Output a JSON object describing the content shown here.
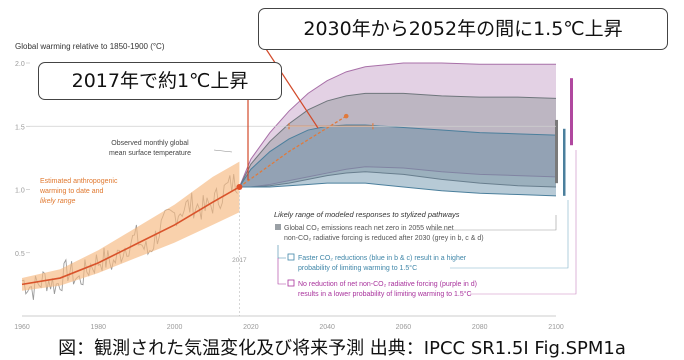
{
  "chart_data": {
    "type": "line",
    "title": "Global warming relative to 1850-1900 (°C)",
    "xlabel": "",
    "ylabel": "",
    "xlim": [
      1960,
      2100
    ],
    "ylim": [
      0,
      2.0
    ],
    "x_ticks": [
      "1960",
      "1980",
      "2000",
      "2020",
      "2040",
      "2060",
      "2080",
      "2100"
    ],
    "y_ticks": [
      "0.5",
      "1.0",
      "1.5",
      "2.0"
    ],
    "grid": false,
    "reference_line_y": 1.5,
    "marker_year_label": "2017",
    "observed_series": {
      "name": "Observed monthly global mean surface temperature",
      "x": [
        1960,
        1963,
        1966,
        1969,
        1972,
        1975,
        1978,
        1981,
        1984,
        1987,
        1990,
        1993,
        1996,
        1999,
        2002,
        2005,
        2008,
        2011,
        2014,
        2017
      ],
      "y": [
        0.28,
        0.22,
        0.3,
        0.24,
        0.36,
        0.28,
        0.4,
        0.45,
        0.42,
        0.55,
        0.62,
        0.5,
        0.68,
        0.78,
        0.85,
        0.88,
        0.84,
        0.92,
        1.02,
        1.08
      ]
    },
    "anthropogenic_series": {
      "name": "Estimated anthropogenic warming to date and likely range",
      "x": [
        1960,
        1970,
        1980,
        1990,
        2000,
        2010,
        2017
      ],
      "y": [
        0.25,
        0.3,
        0.42,
        0.57,
        0.72,
        0.9,
        1.02
      ],
      "lower": [
        0.2,
        0.24,
        0.34,
        0.46,
        0.58,
        0.72,
        0.82
      ],
      "upper": [
        0.3,
        0.37,
        0.52,
        0.7,
        0.88,
        1.1,
        1.22
      ]
    },
    "projection_line": {
      "x": [
        2017,
        2030,
        2045
      ],
      "y": [
        1.02,
        1.3,
        1.58
      ]
    },
    "projection_range": {
      "x_years": [
        2030,
        2052
      ],
      "y": 1.5
    },
    "ranges": {
      "purple": {
        "name": "No reduction of net non-CO2 radiative forcing",
        "x": [
          2017,
          2020,
          2025,
          2030,
          2035,
          2040,
          2045,
          2050,
          2060,
          2070,
          2080,
          2090,
          2100
        ],
        "lower": [
          1.02,
          1.02,
          1.04,
          1.07,
          1.1,
          1.13,
          1.16,
          1.18,
          1.17,
          1.14,
          1.12,
          1.11,
          1.1
        ],
        "upper": [
          1.02,
          1.24,
          1.45,
          1.62,
          1.76,
          1.86,
          1.93,
          1.97,
          2.0,
          2.0,
          1.99,
          1.99,
          1.99
        ]
      },
      "grey": {
        "name": "Global CO2 emissions reach net zero in 2055",
        "x": [
          2017,
          2020,
          2025,
          2030,
          2035,
          2040,
          2045,
          2050,
          2060,
          2070,
          2080,
          2090,
          2100
        ],
        "lower": [
          1.02,
          1.02,
          1.03,
          1.05,
          1.08,
          1.11,
          1.13,
          1.14,
          1.12,
          1.08,
          1.05,
          1.03,
          1.02
        ],
        "upper": [
          1.02,
          1.2,
          1.38,
          1.52,
          1.63,
          1.7,
          1.74,
          1.76,
          1.76,
          1.74,
          1.73,
          1.73,
          1.72
        ]
      },
      "blue": {
        "name": "Faster CO2 reductions",
        "x": [
          2017,
          2020,
          2025,
          2030,
          2035,
          2040,
          2045,
          2050,
          2060,
          2070,
          2080,
          2090,
          2100
        ],
        "lower": [
          1.02,
          1.02,
          1.02,
          1.03,
          1.04,
          1.05,
          1.05,
          1.05,
          1.02,
          0.99,
          0.97,
          0.96,
          0.95
        ],
        "upper": [
          1.02,
          1.16,
          1.3,
          1.4,
          1.47,
          1.5,
          1.51,
          1.51,
          1.49,
          1.47,
          1.45,
          1.44,
          1.43
        ]
      }
    },
    "annotations": {
      "observed": [
        "Observed monthly global",
        "mean surface temperature"
      ],
      "anthropogenic": [
        "Estimated anthropogenic",
        "warming to date and",
        "likely range"
      ],
      "pathways_title": "Likely range of modeled responses to stylized pathways",
      "grey_text": [
        "Global CO₂ emissions reach net zero in 2055 while net",
        "non-CO₂ radiative forcing is reduced after 2030 (grey in b, c & d)"
      ],
      "blue_text": [
        "Faster CO₂ reductions (blue in b & c) result in a higher",
        "probability of limiting warming to 1.5°C"
      ],
      "purple_text": [
        "No reduction of net non-CO₂ radiative forcing (purple in d)",
        "results in a lower probability of limiting warming to 1.5°C"
      ]
    },
    "colors": {
      "observed": "#9a9a9a",
      "anthropogenic_line": "#d9532b",
      "anthropogenic_band": "#f6b880",
      "blue_band": "#5f8aa3",
      "grey_band": "#8e9499",
      "purple_band": "#b07ab2",
      "blue_text": "#3f86a8",
      "purple_text": "#a8329c",
      "axis_text": "#9a9a9a"
    }
  },
  "callouts": {
    "range_2030_2052": "2030年から2052年の間に1.5℃上昇",
    "year_2017": "2017年で約1℃上昇"
  },
  "caption": "図：観測された気温変化及び将来予測 出典：IPCC SR1.5I Fig.SPM1a"
}
